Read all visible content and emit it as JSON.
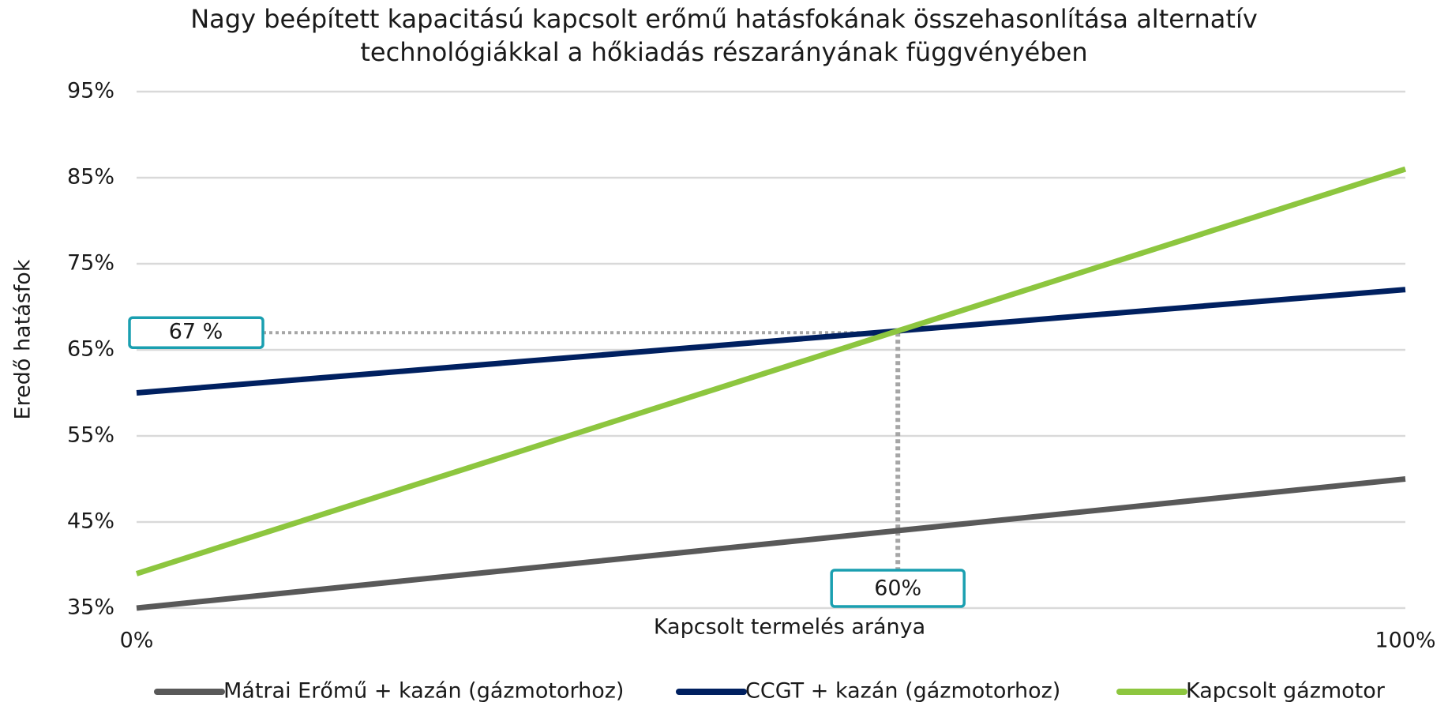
{
  "chart_data": {
    "type": "line",
    "title": [
      "Nagy beépített kapacitású kapcsolt erőmű hatásfokának összehasonlítása alternatív",
      "technológiákkal a hőkiadás részarányának függvényében"
    ],
    "x_label": "Kapcsolt termelés aránya",
    "y_label": "Eredő hatásfok",
    "x": [
      0,
      100
    ],
    "series": [
      {
        "name": "Mátrai Erőmű + kazán (gázmotorhoz)",
        "color": "#595959",
        "values": [
          35,
          50
        ]
      },
      {
        "name": "CCGT + kazán (gázmotorhoz)",
        "color": "#002060",
        "values": [
          60,
          72
        ]
      },
      {
        "name": "Kapcsolt gázmotor",
        "color": "#8dc63f",
        "values": [
          39,
          86
        ]
      }
    ],
    "xlim": [
      0,
      100
    ],
    "xticks": [
      {
        "value": 0,
        "label": "0%"
      },
      {
        "value": 100,
        "label": "100%"
      }
    ],
    "ylim": [
      35,
      95
    ],
    "yticks": [
      {
        "value": 35,
        "label": "35%"
      },
      {
        "value": 45,
        "label": "45%"
      },
      {
        "value": 55,
        "label": "55%"
      },
      {
        "value": 65,
        "label": "65%"
      },
      {
        "value": 75,
        "label": "75%"
      },
      {
        "value": 85,
        "label": "85%"
      },
      {
        "value": 95,
        "label": "95%"
      }
    ],
    "grid": true,
    "annotations": [
      {
        "label": "67 %",
        "value": 67
      },
      {
        "label": "60%",
        "value": 60
      }
    ]
  }
}
